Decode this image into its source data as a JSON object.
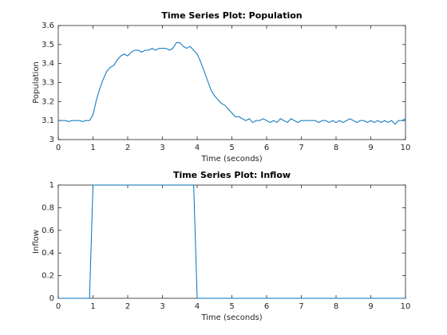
{
  "chart_data": [
    {
      "type": "line",
      "title": "Time Series Plot: Population",
      "xlabel": "Time (seconds)",
      "ylabel": "Population",
      "color": "#0072bd",
      "x": [
        0,
        0.1,
        0.2,
        0.3,
        0.4,
        0.5,
        0.6,
        0.7,
        0.8,
        0.9,
        1,
        1.1,
        1.2,
        1.3,
        1.4,
        1.5,
        1.6,
        1.7,
        1.8,
        1.9,
        2,
        2.1,
        2.2,
        2.3,
        2.4,
        2.5,
        2.6,
        2.7,
        2.8,
        2.9,
        3,
        3.1,
        3.2,
        3.3,
        3.4,
        3.5,
        3.6,
        3.7,
        3.8,
        3.9,
        4,
        4.1,
        4.2,
        4.3,
        4.4,
        4.5,
        4.6,
        4.7,
        4.8,
        4.9,
        5,
        5.1,
        5.2,
        5.3,
        5.4,
        5.5,
        5.6,
        5.7,
        5.8,
        5.9,
        6,
        6.1,
        6.2,
        6.3,
        6.4,
        6.5,
        6.6,
        6.7,
        6.8,
        6.9,
        7,
        7.1,
        7.2,
        7.3,
        7.4,
        7.5,
        7.6,
        7.7,
        7.8,
        7.9,
        8,
        8.1,
        8.2,
        8.3,
        8.4,
        8.5,
        8.6,
        8.7,
        8.8,
        8.9,
        9,
        9.1,
        9.2,
        9.3,
        9.4,
        9.5,
        9.6,
        9.7,
        9.8,
        9.9,
        10
      ],
      "values": [
        3.1,
        3.1,
        3.1,
        3.095,
        3.1,
        3.1,
        3.1,
        3.095,
        3.1,
        3.1,
        3.13,
        3.21,
        3.27,
        3.32,
        3.36,
        3.38,
        3.39,
        3.42,
        3.44,
        3.45,
        3.44,
        3.46,
        3.47,
        3.47,
        3.46,
        3.47,
        3.47,
        3.48,
        3.47,
        3.48,
        3.48,
        3.48,
        3.47,
        3.48,
        3.51,
        3.51,
        3.49,
        3.48,
        3.49,
        3.47,
        3.45,
        3.41,
        3.36,
        3.31,
        3.26,
        3.23,
        3.21,
        3.19,
        3.18,
        3.16,
        3.14,
        3.12,
        3.12,
        3.11,
        3.1,
        3.11,
        3.09,
        3.1,
        3.1,
        3.11,
        3.1,
        3.09,
        3.1,
        3.09,
        3.11,
        3.1,
        3.09,
        3.11,
        3.1,
        3.09,
        3.1,
        3.1,
        3.1,
        3.1,
        3.1,
        3.09,
        3.1,
        3.1,
        3.09,
        3.1,
        3.09,
        3.1,
        3.09,
        3.1,
        3.11,
        3.1,
        3.09,
        3.1,
        3.1,
        3.09,
        3.1,
        3.09,
        3.1,
        3.09,
        3.1,
        3.09,
        3.1,
        3.08,
        3.1,
        3.1,
        3.11
      ],
      "xlim": [
        0,
        10
      ],
      "xticks": [
        0,
        1,
        2,
        3,
        4,
        5,
        6,
        7,
        8,
        9,
        10
      ],
      "ylim": [
        3,
        3.6
      ],
      "yticks": [
        3,
        3.1,
        3.2,
        3.3,
        3.4,
        3.5,
        3.6
      ]
    },
    {
      "type": "line",
      "title": "Time Series Plot: Inflow",
      "xlabel": "Time (seconds)",
      "ylabel": "Inflow",
      "color": "#0072bd",
      "x": [
        0,
        0.9,
        1.0,
        3.9,
        4.0,
        10
      ],
      "values": [
        0,
        0,
        1,
        1,
        0,
        0
      ],
      "xlim": [
        0,
        10
      ],
      "xticks": [
        0,
        1,
        2,
        3,
        4,
        5,
        6,
        7,
        8,
        9,
        10
      ],
      "ylim": [
        0,
        1
      ],
      "yticks": [
        0,
        0.2,
        0.4,
        0.6,
        0.8,
        1
      ]
    }
  ]
}
